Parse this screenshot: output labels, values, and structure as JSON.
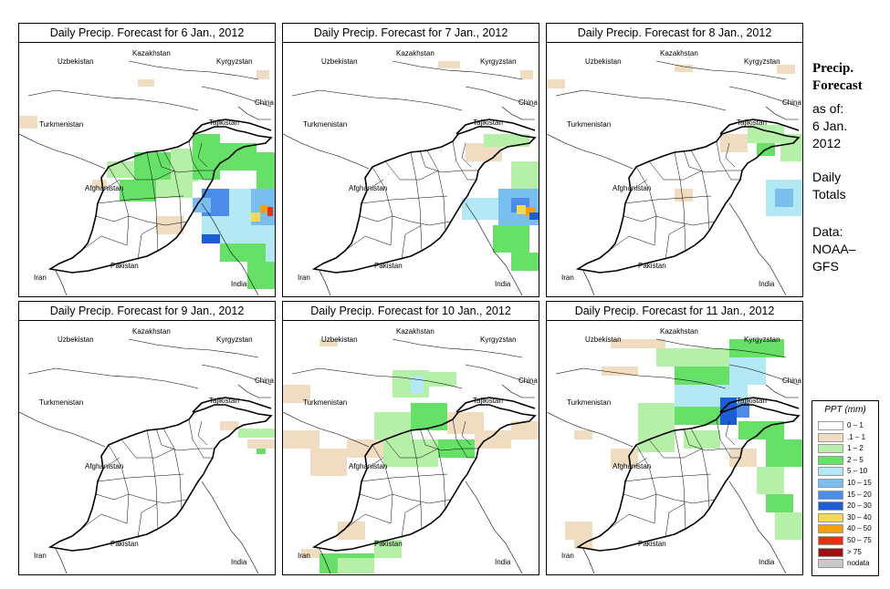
{
  "title_prefix": "Daily Precip. Forecast for",
  "panels": [
    {
      "date": "6 Jan., 2012",
      "title": "Daily Precip. Forecast for  6 Jan., 2012"
    },
    {
      "date": "7 Jan., 2012",
      "title": "Daily Precip. Forecast for  7 Jan., 2012"
    },
    {
      "date": "8 Jan., 2012",
      "title": "Daily Precip. Forecast for  8 Jan., 2012"
    },
    {
      "date": "9 Jan., 2012",
      "title": "Daily Precip. Forecast for  9 Jan., 2012"
    },
    {
      "date": "10 Jan., 2012",
      "title": "Daily Precip. Forecast for  10 Jan., 2012"
    },
    {
      "date": "11 Jan., 2012",
      "title": "Daily Precip. Forecast for  11 Jan., 2012"
    }
  ],
  "countries": {
    "kazakhstan": "Kazakhstan",
    "uzbekistan": "Uzbekistan",
    "kyrgyzstan": "Kyrgyzstan",
    "turkmenistan": "Turkmenistan",
    "tajikistan": "Tajikistan",
    "china": "China",
    "afghanistan": "Afghanistan",
    "iran": "Iran",
    "pakistan": "Pakistan",
    "india": "India"
  },
  "sidebar": {
    "title_line1": "Precip.",
    "title_line2": "Forecast",
    "asof_line1": "as of:",
    "asof_line2": "6 Jan.",
    "asof_line3": "2012",
    "daily_line1": "Daily",
    "daily_line2": "Totals",
    "data_line1": "Data:",
    "data_line2": "NOAA–",
    "data_line3": "GFS"
  },
  "legend": {
    "title": "PPT (mm)",
    "items": [
      {
        "label": "0 – 1",
        "color": "#ffffff"
      },
      {
        "label": ".1 – 1",
        "color": "#f0dcc0"
      },
      {
        "label": "1 – 2",
        "color": "#b6f0a8"
      },
      {
        "label": "2 – 5",
        "color": "#66e066"
      },
      {
        "label": "5 – 10",
        "color": "#b4e8f4"
      },
      {
        "label": "10 – 15",
        "color": "#78bff0"
      },
      {
        "label": "15 – 20",
        "color": "#4a8ce8"
      },
      {
        "label": "20 – 30",
        "color": "#1e5cd6"
      },
      {
        "label": "30 – 40",
        "color": "#f4d858"
      },
      {
        "label": "40 – 50",
        "color": "#f4a000"
      },
      {
        "label": "50 – 75",
        "color": "#e83010"
      },
      {
        "label": "> 75",
        "color": "#a01010"
      },
      {
        "label": "nodata",
        "color": "#c8c8c8"
      }
    ]
  }
}
